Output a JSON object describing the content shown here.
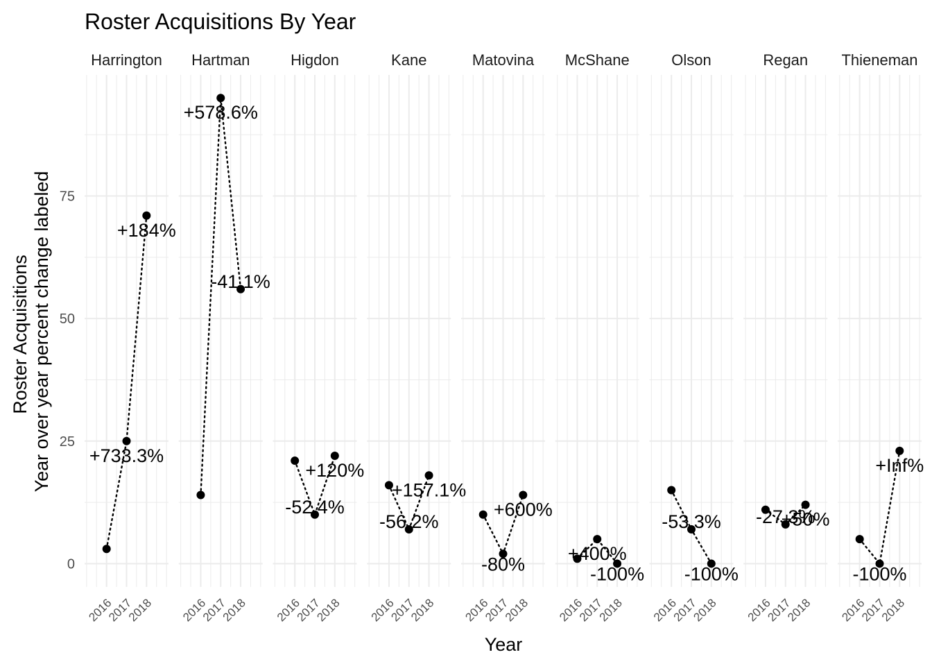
{
  "chart_data": {
    "type": "line",
    "title": "Roster Acquisitions By Year",
    "xlabel": "Year",
    "ylabel": [
      "Roster Acquisitions",
      "Year over year percent change labeled"
    ],
    "x": [
      "2016",
      "2017",
      "2018"
    ],
    "yticks": [
      0,
      25,
      50,
      75
    ],
    "ylim": [
      -4.75,
      99.7
    ],
    "grid": true,
    "legend": "none",
    "panels": [
      {
        "name": "Harrington",
        "values": [
          3,
          25,
          71
        ],
        "labels": [
          "",
          "+733.3%",
          "+184%"
        ]
      },
      {
        "name": "Hartman",
        "values": [
          14,
          95,
          56
        ],
        "labels": [
          "",
          "+578.6%",
          "-41.1%"
        ]
      },
      {
        "name": "Higdon",
        "values": [
          21,
          10,
          22
        ],
        "labels": [
          "",
          "-52.4%",
          "+120%"
        ]
      },
      {
        "name": "Kane",
        "values": [
          16,
          7,
          18
        ],
        "labels": [
          "",
          "-56.2%",
          "+157.1%"
        ]
      },
      {
        "name": "Matovina",
        "values": [
          10,
          2,
          14
        ],
        "labels": [
          "",
          "-80%",
          "+600%"
        ]
      },
      {
        "name": "McShane",
        "values": [
          1,
          5,
          0
        ],
        "labels": [
          "",
          "+400%",
          "-100%"
        ]
      },
      {
        "name": "Olson",
        "values": [
          15,
          7,
          0
        ],
        "labels": [
          "",
          "-53.3%",
          "-100%"
        ]
      },
      {
        "name": "Regan",
        "values": [
          11,
          8,
          12
        ],
        "labels": [
          "",
          "-27.3%",
          "+50%"
        ]
      },
      {
        "name": "Thieneman",
        "values": [
          5,
          0,
          23
        ],
        "labels": [
          "",
          "-100%",
          "+Inf%"
        ]
      }
    ]
  }
}
